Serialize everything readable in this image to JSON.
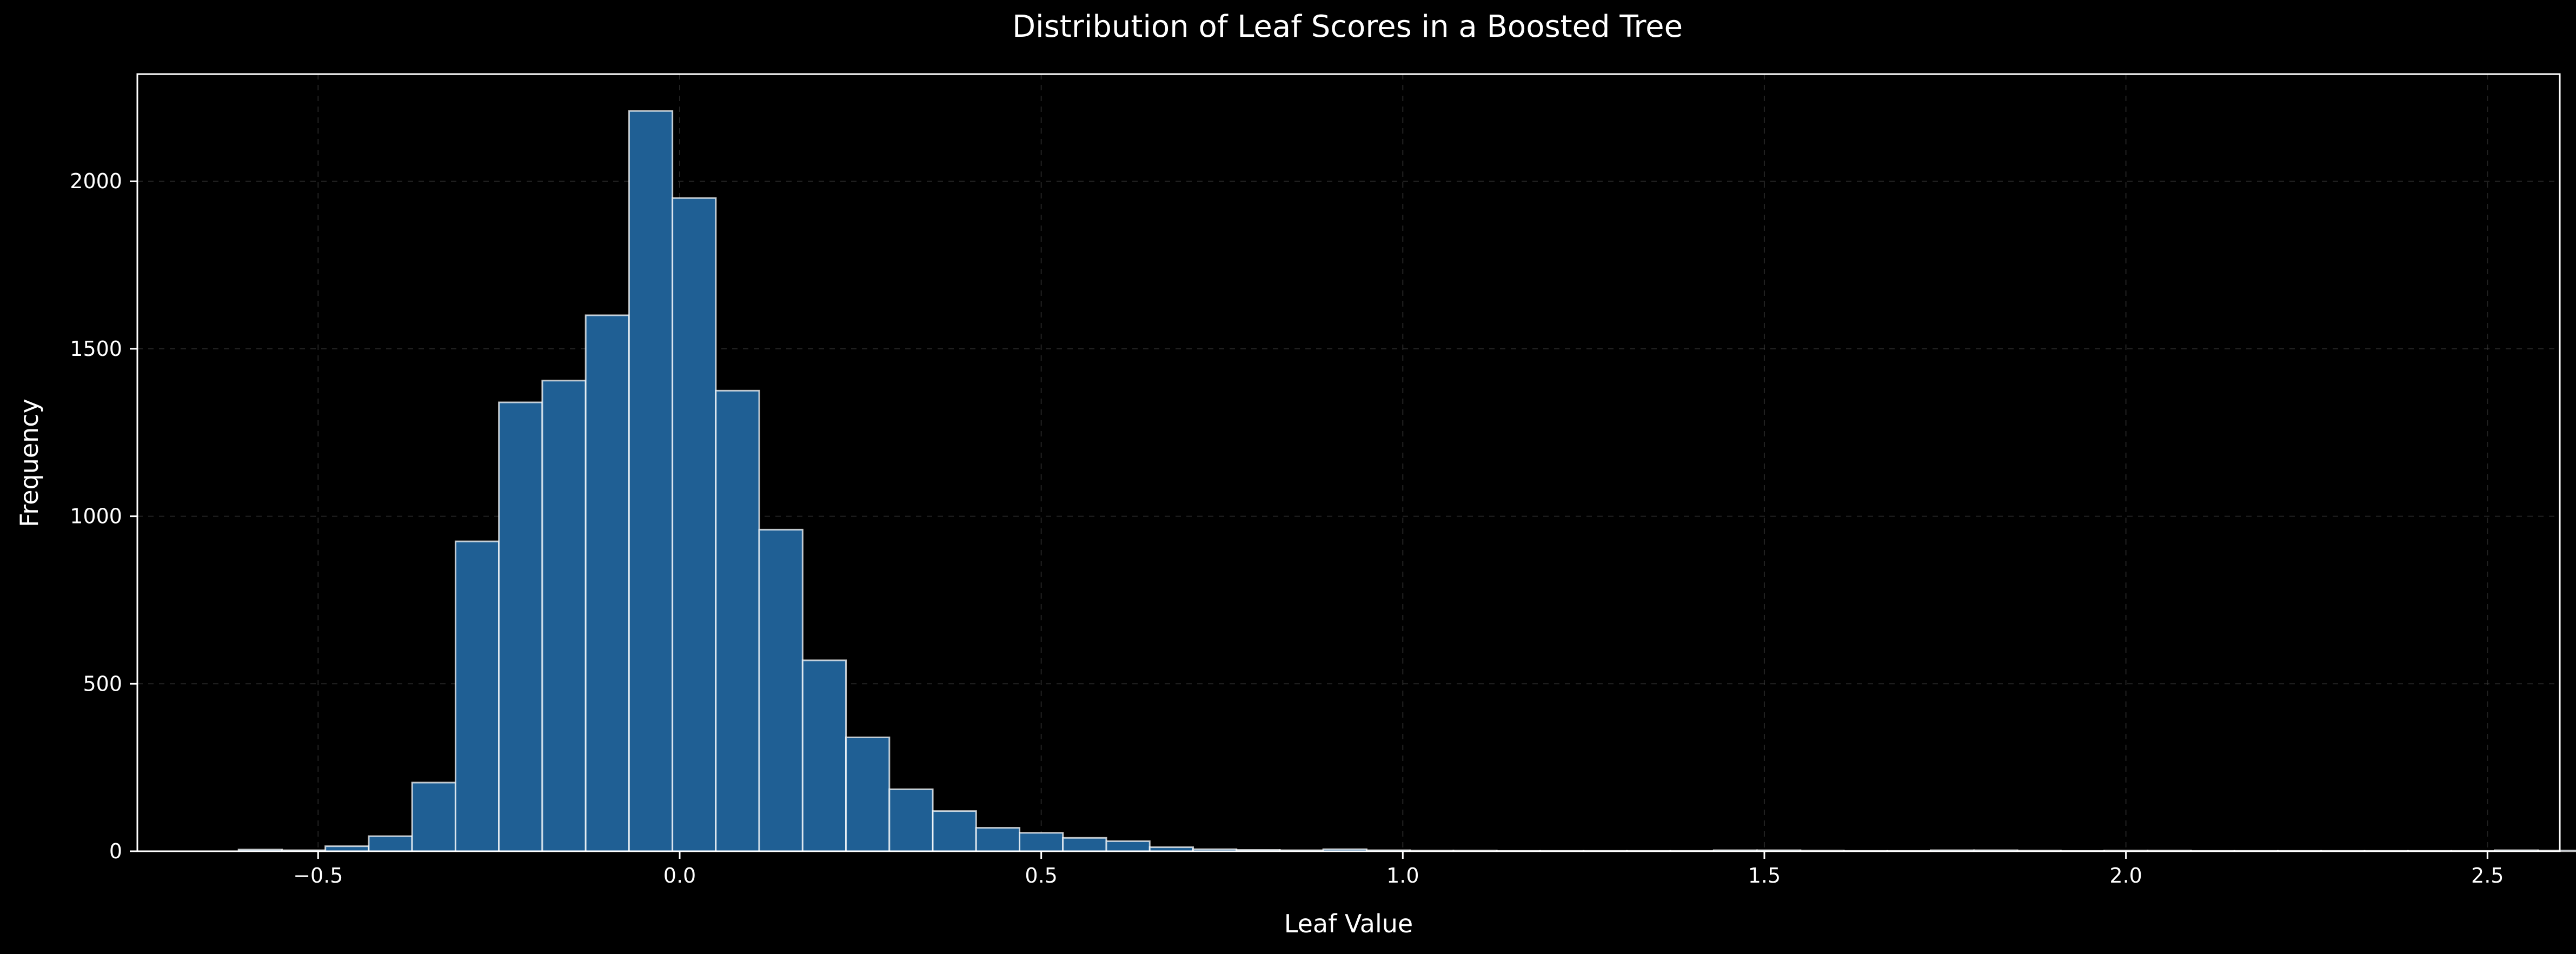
{
  "colors": {
    "background": "#000000",
    "bar_fill": "#1f5f94",
    "text": "#ffffff"
  },
  "chart_data": {
    "type": "bar",
    "title": "Distribution of Leaf Scores in a Boosted Tree",
    "xlabel": "Leaf Value",
    "ylabel": "Frequency",
    "xlim": [
      -0.75,
      2.6
    ],
    "ylim": [
      0,
      2320
    ],
    "grid": true,
    "bin_width": 0.06,
    "bin_start": -0.61,
    "values": [
      5,
      3,
      15,
      45,
      205,
      925,
      1340,
      1405,
      1600,
      2210,
      1950,
      1375,
      960,
      570,
      340,
      185,
      120,
      70,
      55,
      40,
      30,
      12,
      6,
      4,
      3,
      6,
      3,
      2,
      2,
      1,
      1,
      1,
      1,
      1,
      3,
      3,
      2,
      1,
      1,
      3,
      3,
      2,
      1,
      2,
      2,
      1,
      1,
      1,
      1,
      1,
      1,
      1,
      3,
      2
    ],
    "xticks": [
      {
        "value": -0.5,
        "label": "−0.5"
      },
      {
        "value": 0.0,
        "label": "0.0"
      },
      {
        "value": 0.5,
        "label": "0.5"
      },
      {
        "value": 1.0,
        "label": "1.0"
      },
      {
        "value": 1.5,
        "label": "1.5"
      },
      {
        "value": 2.0,
        "label": "2.0"
      },
      {
        "value": 2.5,
        "label": "2.5"
      }
    ],
    "yticks": [
      {
        "value": 0,
        "label": "0"
      },
      {
        "value": 500,
        "label": "500"
      },
      {
        "value": 1000,
        "label": "1000"
      },
      {
        "value": 1500,
        "label": "1500"
      },
      {
        "value": 2000,
        "label": "2000"
      }
    ]
  }
}
